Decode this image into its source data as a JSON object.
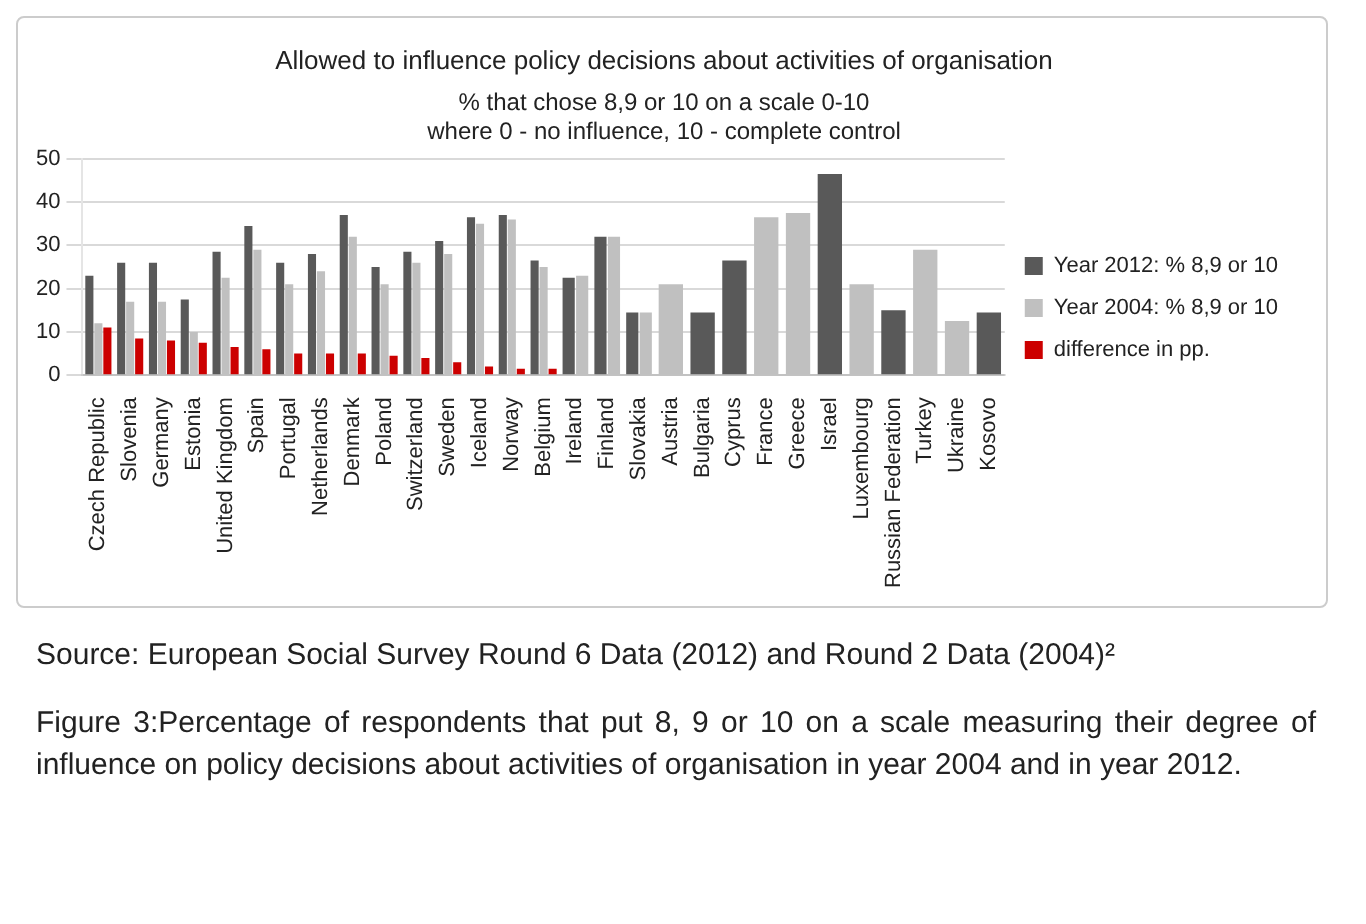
{
  "chart_data": {
    "type": "bar",
    "title": "Allowed to influence policy decisions about activities of organisation",
    "subtitle": "% that chose 8,9 or 10 on a scale 0-10\nwhere 0 - no influence, 10 - complete control",
    "categories": [
      "Czech Republic",
      "Slovenia",
      "Germany",
      "Estonia",
      "United Kingdom",
      "Spain",
      "Portugal",
      "Netherlands",
      "Denmark",
      "Poland",
      "Switzerland",
      "Sweden",
      "Iceland",
      "Norway",
      "Belgium",
      "Ireland",
      "Finland",
      "Slovakia",
      "Austria",
      "Bulgaria",
      "Cyprus",
      "France",
      "Greece",
      "Israel",
      "Luxembourg",
      "Russian Federation",
      "Turkey",
      "Ukraine",
      "Kosovo"
    ],
    "series": [
      {
        "name": "Year 2012: % 8,9 or 10",
        "color": "#595959",
        "values": [
          23,
          26,
          26,
          17.5,
          28.5,
          34.5,
          26,
          28,
          37,
          25,
          28.5,
          31,
          36.5,
          37,
          26.5,
          22.5,
          32,
          14.5,
          null,
          14.5,
          26.5,
          null,
          null,
          46.5,
          null,
          15,
          null,
          null,
          14.5
        ]
      },
      {
        "name": "Year 2004: % 8,9 or 10",
        "color": "#c0c0c0",
        "values": [
          12,
          17,
          17,
          10,
          22.5,
          29,
          21,
          24,
          32,
          21,
          26,
          28,
          35,
          36,
          25,
          23,
          32,
          14.5,
          21,
          null,
          null,
          36.5,
          37.5,
          null,
          21,
          null,
          29,
          12.5,
          null
        ]
      },
      {
        "name": "difference in pp.",
        "color": "#cc0000",
        "values": [
          11,
          8.5,
          8,
          7.5,
          6.5,
          6,
          5,
          5,
          5,
          4.5,
          4,
          3,
          2,
          1.5,
          1.5,
          null,
          null,
          null,
          null,
          null,
          null,
          null,
          null,
          null,
          null,
          null,
          null,
          null,
          null
        ]
      }
    ],
    "ylim": [
      0,
      50
    ],
    "yticks": [
      0,
      10,
      20,
      30,
      40,
      50
    ],
    "grid": "y",
    "legend": "right",
    "annotations": [
      "Source: European Social Survey Round 6 Data (2012) and Round 2 Data (2004)²",
      "Figure 3:Percentage of respondents that put 8, 9 or 10 on a scale measuring their degree of influence on policy decisions about activities of organisation in year 2004 and in year 2012."
    ]
  }
}
